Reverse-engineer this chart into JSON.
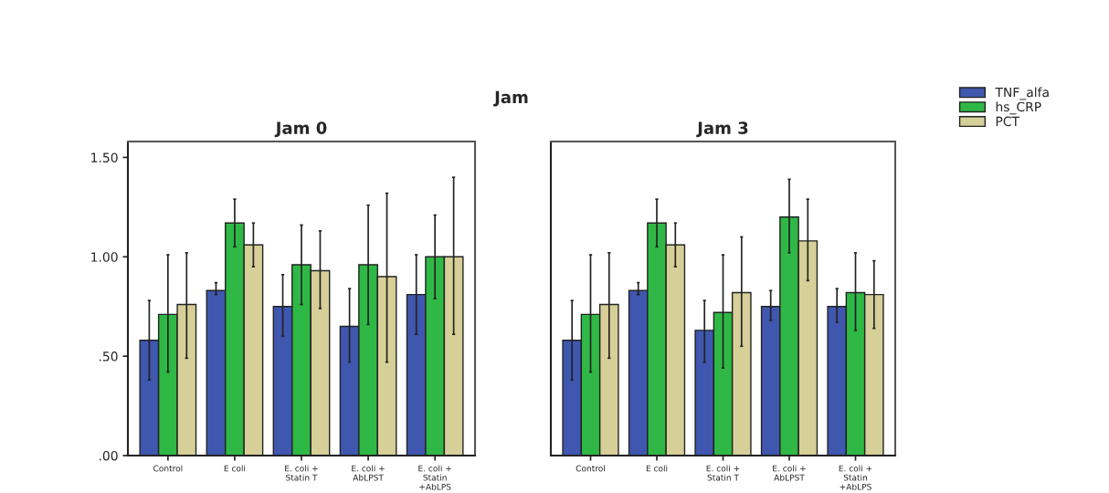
{
  "chart_data": [
    {
      "type": "bar",
      "title": "Jam 0",
      "annotations": [
        "Jam"
      ],
      "categories": [
        "Control",
        "E coli",
        "E. coli +\nStatin T",
        "E. coli +\nAbLPST",
        "E. coli +\nStatin\n+AbLPS"
      ],
      "ylim": [
        0,
        1.58
      ],
      "yticks": [
        {
          "value": 0,
          "label": ".00"
        },
        {
          "value": 0.5,
          "label": ".50"
        },
        {
          "value": 1.0,
          "label": "1.00"
        },
        {
          "value": 1.5,
          "label": "1.50"
        }
      ],
      "grid": false,
      "legend": "top right",
      "series": [
        {
          "name": "TNF_alfa",
          "color": "#3f57ae",
          "values": [
            0.58,
            0.83,
            0.75,
            0.65,
            0.81
          ],
          "errors": [
            [
              0.38,
              0.78
            ],
            [
              0.81,
              0.87
            ],
            [
              0.6,
              0.91
            ],
            [
              0.47,
              0.84
            ],
            [
              0.61,
              1.01
            ]
          ]
        },
        {
          "name": "hs_CRP",
          "color": "#2fb845",
          "values": [
            0.71,
            1.17,
            0.96,
            0.96,
            1.0
          ],
          "errors": [
            [
              0.42,
              1.01
            ],
            [
              1.05,
              1.29
            ],
            [
              0.76,
              1.16
            ],
            [
              0.66,
              1.26
            ],
            [
              0.79,
              1.21
            ]
          ]
        },
        {
          "name": "PCT",
          "color": "#d6cf97",
          "values": [
            0.76,
            1.06,
            0.93,
            0.9,
            1.0
          ],
          "errors": [
            [
              0.49,
              1.02
            ],
            [
              0.95,
              1.17
            ],
            [
              0.74,
              1.13
            ],
            [
              0.47,
              1.32
            ],
            [
              0.61,
              1.4
            ]
          ]
        }
      ]
    },
    {
      "type": "bar",
      "title": "Jam 3",
      "categories": [
        "Control",
        "E coli",
        "E. coli +\nStatin T",
        "E. coli +\nAbLPST",
        "E. coli +\nStatin\n+AbLPS"
      ],
      "ylim": [
        0,
        1.58
      ],
      "tick_labels": "x",
      "grid": false,
      "series": [
        {
          "color": "#3f57ae",
          "values": [
            0.58,
            0.83,
            0.63,
            0.75,
            0.75
          ],
          "errors": [
            [
              0.38,
              0.78
            ],
            [
              0.81,
              0.87
            ],
            [
              0.47,
              0.78
            ],
            [
              0.68,
              0.83
            ],
            [
              0.67,
              0.84
            ]
          ]
        },
        {
          "color": "#2fb845",
          "values": [
            0.71,
            1.17,
            0.72,
            1.2,
            0.82
          ],
          "errors": [
            [
              0.42,
              1.01
            ],
            [
              1.05,
              1.29
            ],
            [
              0.44,
              1.01
            ],
            [
              1.02,
              1.39
            ],
            [
              0.63,
              1.02
            ]
          ]
        },
        {
          "color": "#d6cf97",
          "values": [
            0.76,
            1.06,
            0.82,
            1.08,
            0.81
          ],
          "errors": [
            [
              0.49,
              1.02
            ],
            [
              0.95,
              1.17
            ],
            [
              0.55,
              1.1
            ],
            [
              0.88,
              1.29
            ],
            [
              0.64,
              0.98
            ]
          ]
        }
      ]
    }
  ]
}
